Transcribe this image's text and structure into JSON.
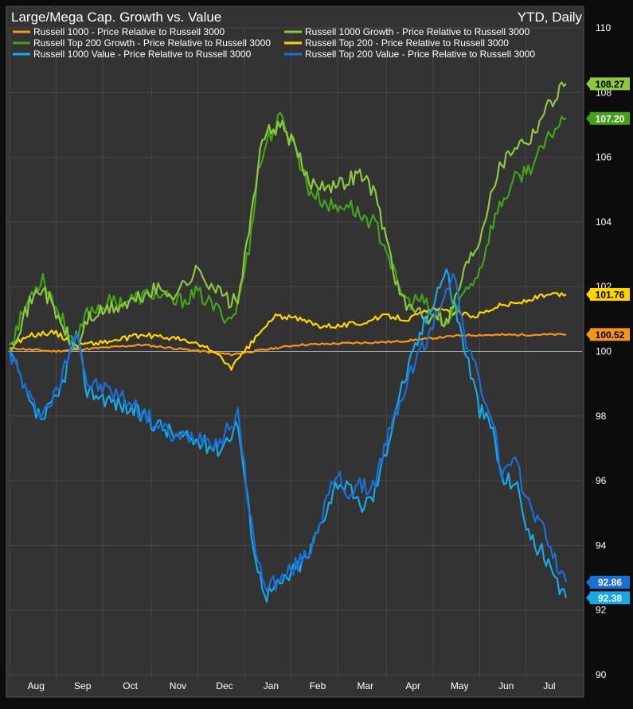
{
  "chart_data": {
    "type": "line",
    "title": "Large/Mega Cap. Growth vs. Value",
    "subtitle": "YTD, Daily",
    "ylim": [
      90,
      110
    ],
    "yticks": [
      90,
      92,
      94,
      96,
      98,
      100,
      102,
      104,
      106,
      108,
      110
    ],
    "reference_line": 100,
    "grid": true,
    "legend_placement": "top-left",
    "months": [
      "Aug",
      "Sep",
      "Oct",
      "Nov",
      "Dec",
      "Jan",
      "Feb",
      "Mar",
      "Apr",
      "May",
      "Jun",
      "Jul"
    ],
    "n_days": 252,
    "series": [
      {
        "name": "Russell 1000 - Price Relative to Russell 3000",
        "color": "#f7941d",
        "last_label": "100.52",
        "keypoints": [
          [
            0,
            100.1
          ],
          [
            20,
            100.0
          ],
          [
            60,
            100.2
          ],
          [
            100,
            99.9
          ],
          [
            130,
            100.2
          ],
          [
            175,
            100.3
          ],
          [
            205,
            100.5
          ],
          [
            250,
            100.52
          ]
        ]
      },
      {
        "name": "Russell 1000 Value - Price Relative to Russell 3000",
        "color": "#17a8e6",
        "last_label": "92.38",
        "keypoints": [
          [
            0,
            100.0
          ],
          [
            10,
            98.2
          ],
          [
            15,
            97.9
          ],
          [
            22,
            98.6
          ],
          [
            30,
            100.5
          ],
          [
            35,
            98.8
          ],
          [
            45,
            98.5
          ],
          [
            55,
            98.2
          ],
          [
            65,
            97.8
          ],
          [
            75,
            97.4
          ],
          [
            85,
            97.2
          ],
          [
            95,
            97.0
          ],
          [
            100,
            97.5
          ],
          [
            103,
            97.8
          ],
          [
            108,
            95.0
          ],
          [
            112,
            93.2
          ],
          [
            116,
            92.5
          ],
          [
            122,
            92.8
          ],
          [
            128,
            93.2
          ],
          [
            135,
            93.7
          ],
          [
            142,
            95.0
          ],
          [
            148,
            96.0
          ],
          [
            152,
            95.8
          ],
          [
            158,
            95.2
          ],
          [
            164,
            95.5
          ],
          [
            170,
            97.0
          ],
          [
            175,
            98.5
          ],
          [
            180,
            99.5
          ],
          [
            185,
            100.5
          ],
          [
            188,
            101.0
          ],
          [
            192,
            101.8
          ],
          [
            197,
            102.5
          ],
          [
            200,
            101.6
          ],
          [
            205,
            100.2
          ],
          [
            212,
            98.2
          ],
          [
            218,
            97.6
          ],
          [
            222,
            96.0
          ],
          [
            228,
            96.0
          ],
          [
            235,
            94.2
          ],
          [
            240,
            93.8
          ],
          [
            245,
            93.0
          ],
          [
            250,
            92.38
          ]
        ]
      },
      {
        "name": "Russell Top 200 Growth - Price Relative to Russell 3000",
        "color": "#42a21a",
        "last_label": "107.20",
        "keypoints": [
          [
            0,
            100.2
          ],
          [
            10,
            101.8
          ],
          [
            15,
            102.3
          ],
          [
            22,
            101.2
          ],
          [
            30,
            100.2
          ],
          [
            35,
            101.2
          ],
          [
            45,
            101.5
          ],
          [
            55,
            101.6
          ],
          [
            65,
            101.8
          ],
          [
            75,
            101.5
          ],
          [
            85,
            101.8
          ],
          [
            95,
            101.2
          ],
          [
            100,
            101.0
          ],
          [
            103,
            101.5
          ],
          [
            108,
            103.2
          ],
          [
            112,
            105.5
          ],
          [
            116,
            106.5
          ],
          [
            122,
            107.2
          ],
          [
            128,
            106.5
          ],
          [
            135,
            105.0
          ],
          [
            142,
            104.6
          ],
          [
            148,
            104.4
          ],
          [
            152,
            104.6
          ],
          [
            158,
            104.2
          ],
          [
            164,
            104.0
          ],
          [
            170,
            103.2
          ],
          [
            175,
            102.0
          ],
          [
            180,
            101.5
          ],
          [
            185,
            101.6
          ],
          [
            188,
            101.4
          ],
          [
            192,
            101.0
          ],
          [
            197,
            100.8
          ],
          [
            200,
            101.2
          ],
          [
            205,
            101.8
          ],
          [
            212,
            102.5
          ],
          [
            218,
            104.0
          ],
          [
            222,
            104.6
          ],
          [
            228,
            105.3
          ],
          [
            235,
            105.7
          ],
          [
            240,
            106.2
          ],
          [
            245,
            106.8
          ],
          [
            250,
            107.2
          ]
        ]
      },
      {
        "name": "Russell 1000 Growth - Price Relative to Russell 3000",
        "color": "#8dc63f",
        "last_label": "108.27",
        "keypoints": [
          [
            0,
            100.1
          ],
          [
            10,
            101.6
          ],
          [
            15,
            102.0
          ],
          [
            22,
            101.0
          ],
          [
            30,
            100.0
          ],
          [
            35,
            101.0
          ],
          [
            45,
            101.3
          ],
          [
            55,
            101.5
          ],
          [
            65,
            101.9
          ],
          [
            75,
            101.8
          ],
          [
            85,
            102.5
          ],
          [
            95,
            101.8
          ],
          [
            100,
            101.5
          ],
          [
            103,
            101.6
          ],
          [
            108,
            103.6
          ],
          [
            112,
            105.8
          ],
          [
            116,
            106.8
          ],
          [
            122,
            107.0
          ],
          [
            128,
            106.4
          ],
          [
            135,
            105.2
          ],
          [
            142,
            105.2
          ],
          [
            148,
            105.1
          ],
          [
            152,
            105.3
          ],
          [
            158,
            105.5
          ],
          [
            164,
            105.0
          ],
          [
            170,
            103.5
          ],
          [
            175,
            102.0
          ],
          [
            180,
            101.2
          ],
          [
            185,
            101.3
          ],
          [
            188,
            101.0
          ],
          [
            192,
            101.3
          ],
          [
            197,
            100.9
          ],
          [
            200,
            101.4
          ],
          [
            205,
            102.5
          ],
          [
            212,
            103.5
          ],
          [
            218,
            105.2
          ],
          [
            222,
            105.8
          ],
          [
            228,
            106.4
          ],
          [
            235,
            106.6
          ],
          [
            240,
            107.3
          ],
          [
            245,
            107.8
          ],
          [
            250,
            108.27
          ]
        ]
      },
      {
        "name": "Russell Top 200 - Price Relative to Russell 3000",
        "color": "#ffd400",
        "last_label": "101.76",
        "keypoints": [
          [
            0,
            100.2
          ],
          [
            10,
            100.5
          ],
          [
            20,
            100.6
          ],
          [
            30,
            100.2
          ],
          [
            45,
            100.3
          ],
          [
            60,
            100.5
          ],
          [
            75,
            100.4
          ],
          [
            90,
            100.1
          ],
          [
            100,
            99.5
          ],
          [
            105,
            99.9
          ],
          [
            112,
            100.5
          ],
          [
            120,
            101.1
          ],
          [
            130,
            101.0
          ],
          [
            140,
            100.8
          ],
          [
            150,
            100.8
          ],
          [
            160,
            100.9
          ],
          [
            170,
            101.1
          ],
          [
            180,
            101.0
          ],
          [
            190,
            101.3
          ],
          [
            200,
            101.2
          ],
          [
            210,
            101.1
          ],
          [
            220,
            101.4
          ],
          [
            230,
            101.5
          ],
          [
            240,
            101.7
          ],
          [
            250,
            101.76
          ]
        ]
      },
      {
        "name": "Russell Top 200 Value - Price Relative to Russell 3000",
        "color": "#1a6fd6",
        "last_label": "92.86",
        "keypoints": [
          [
            0,
            100.0
          ],
          [
            10,
            98.4
          ],
          [
            15,
            98.1
          ],
          [
            22,
            98.8
          ],
          [
            30,
            100.8
          ],
          [
            35,
            99.0
          ],
          [
            45,
            98.8
          ],
          [
            55,
            98.4
          ],
          [
            65,
            97.8
          ],
          [
            75,
            97.3
          ],
          [
            85,
            97.4
          ],
          [
            95,
            97.2
          ],
          [
            100,
            97.8
          ],
          [
            103,
            98.0
          ],
          [
            108,
            95.2
          ],
          [
            112,
            93.4
          ],
          [
            116,
            92.8
          ],
          [
            122,
            92.9
          ],
          [
            128,
            93.3
          ],
          [
            135,
            93.8
          ],
          [
            142,
            95.2
          ],
          [
            148,
            96.2
          ],
          [
            152,
            95.6
          ],
          [
            158,
            95.8
          ],
          [
            164,
            95.8
          ],
          [
            170,
            97.2
          ],
          [
            175,
            98.2
          ],
          [
            180,
            99.2
          ],
          [
            185,
            100.0
          ],
          [
            188,
            100.3
          ],
          [
            192,
            101.0
          ],
          [
            197,
            102.0
          ],
          [
            200,
            102.5
          ],
          [
            205,
            100.6
          ],
          [
            212,
            99.0
          ],
          [
            218,
            97.8
          ],
          [
            222,
            96.2
          ],
          [
            228,
            96.5
          ],
          [
            235,
            95.2
          ],
          [
            240,
            94.6
          ],
          [
            245,
            93.8
          ],
          [
            250,
            92.86
          ]
        ]
      }
    ],
    "legend_order": [
      0,
      3,
      2,
      4,
      1,
      5
    ],
    "badge_order": [
      3,
      2,
      4,
      0,
      5,
      1
    ]
  }
}
